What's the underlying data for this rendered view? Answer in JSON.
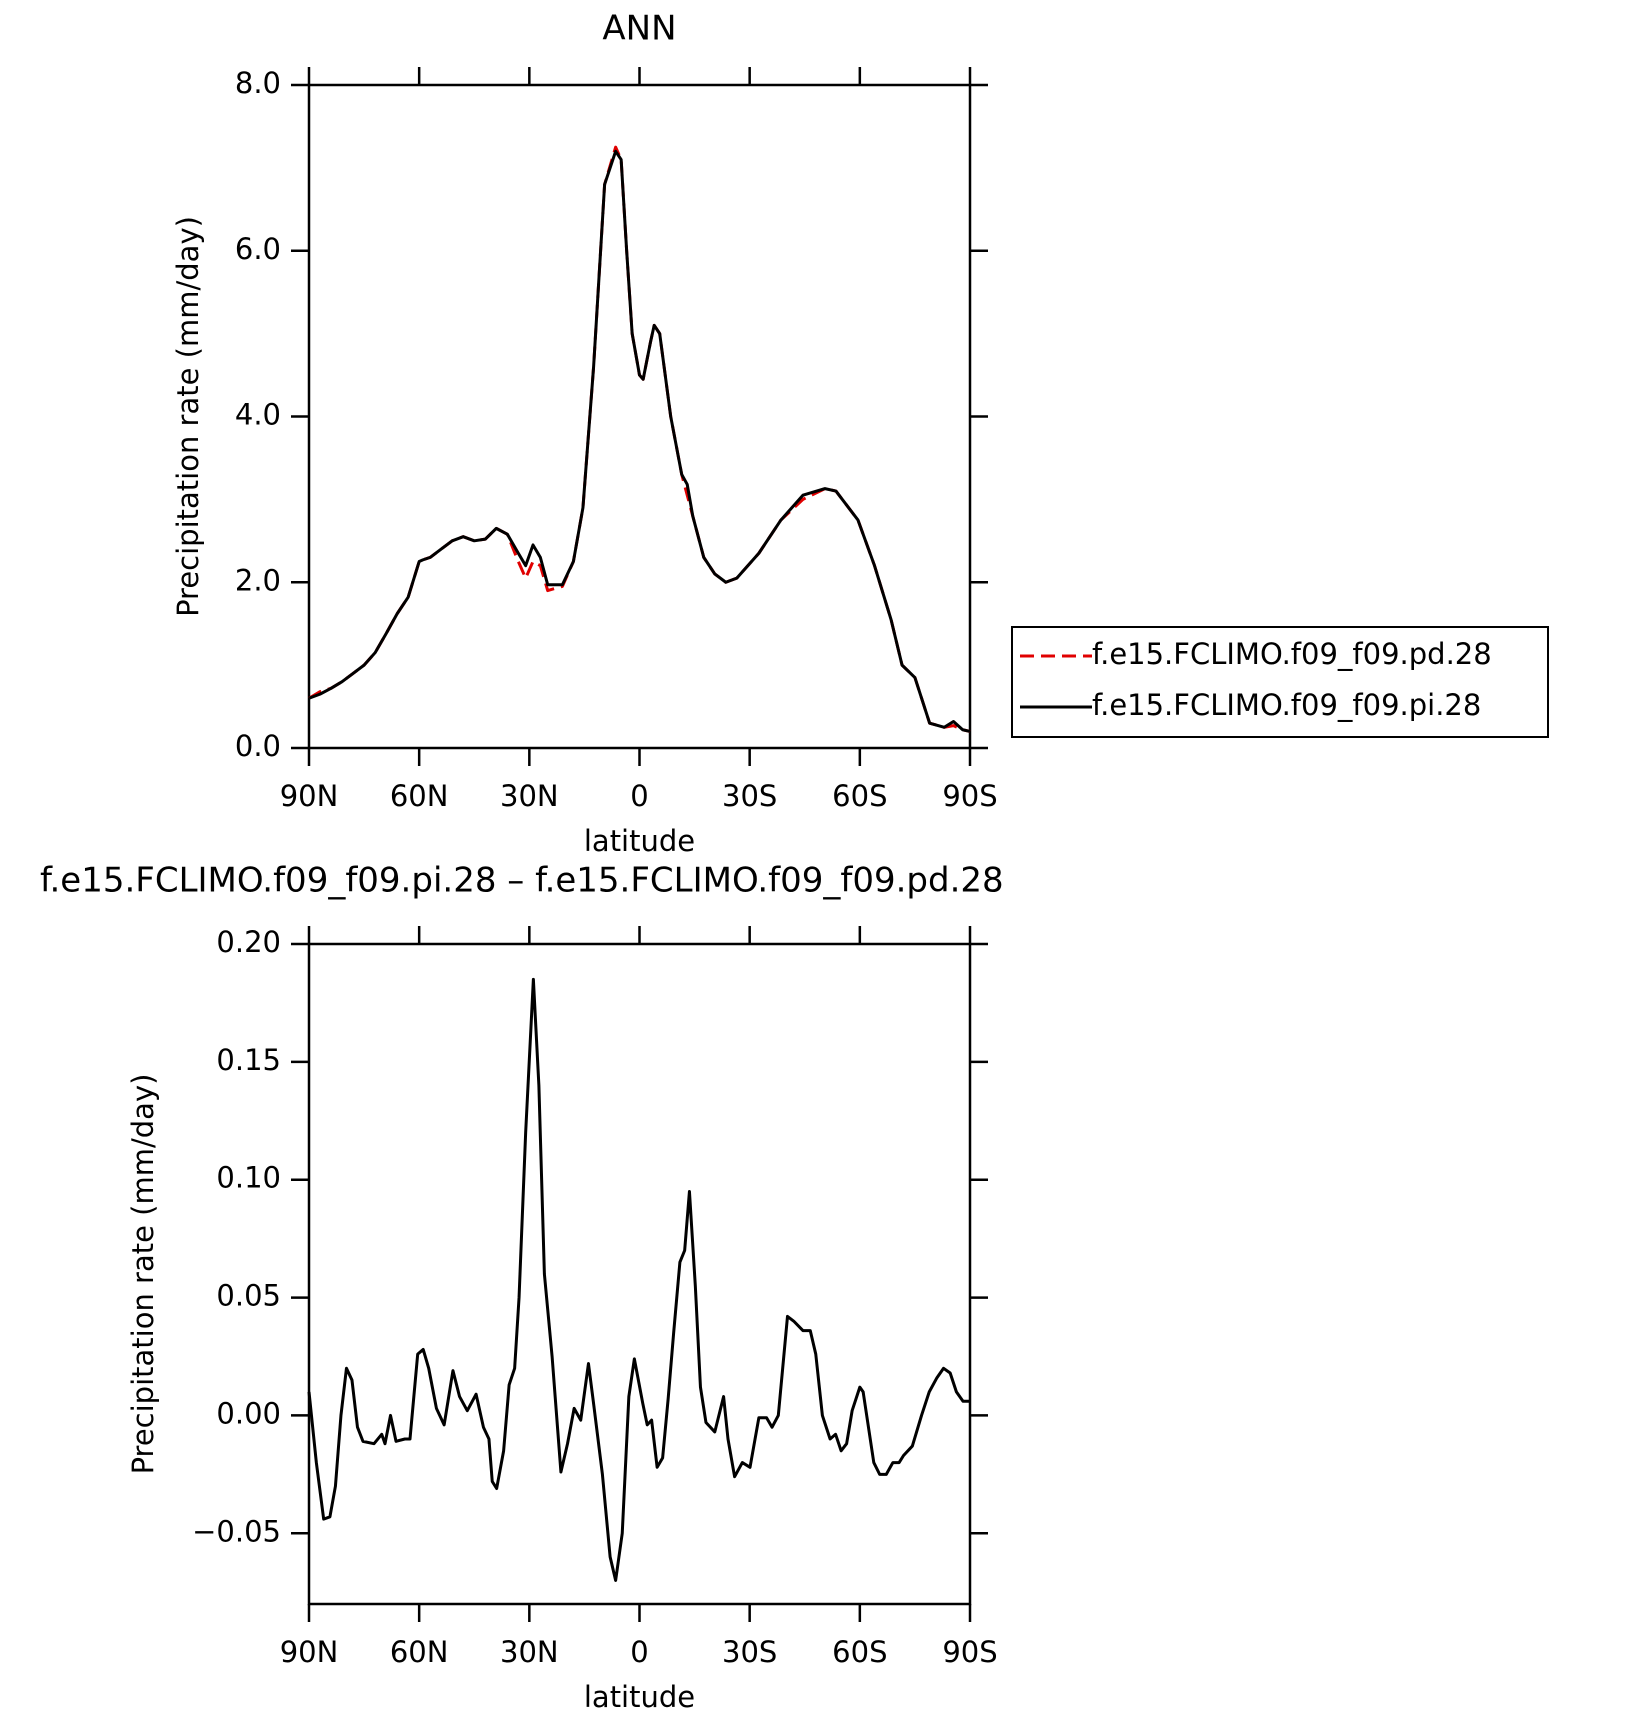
{
  "chart_data": [
    {
      "type": "line",
      "title": "ANN",
      "xlabel": "latitude",
      "ylabel": "Precipitation rate (mm/day)",
      "x": [
        90,
        87,
        84,
        81,
        78,
        75,
        72,
        69,
        66,
        63,
        60,
        59,
        57,
        54,
        51,
        48,
        45,
        42,
        39,
        36,
        33,
        31,
        29,
        27,
        25,
        21,
        18,
        15.4,
        12.5,
        9.5,
        6.5,
        5,
        3.5,
        2,
        0,
        -1,
        -3,
        -4,
        -5.5,
        -8.5,
        -11.5,
        -13,
        -14.5,
        -17.5,
        -20.5,
        -23.5,
        -26.5,
        -32.5,
        -38.5,
        -44.5,
        -50.5,
        -53.5,
        -59.5,
        -64,
        -68.5,
        -71.5,
        -75,
        -79,
        -83,
        -85.5,
        -88,
        -90
      ],
      "series": [
        {
          "name": "f.e15.FCLIMO.f09_f09.pd.28",
          "color": "#e00000",
          "dash": true,
          "values": [
            0.6,
            0.68,
            0.72,
            0.8,
            0.9,
            1.0,
            1.15,
            1.38,
            1.62,
            1.82,
            2.25,
            2.27,
            2.3,
            2.4,
            2.5,
            2.55,
            2.5,
            2.52,
            2.65,
            2.58,
            2.25,
            2.05,
            2.25,
            2.2,
            1.9,
            1.95,
            2.25,
            2.9,
            4.6,
            6.8,
            7.25,
            7.1,
            6.0,
            5.0,
            4.5,
            4.45,
            4.9,
            5.1,
            5.0,
            4.0,
            3.3,
            3.05,
            2.8,
            2.3,
            2.1,
            2.0,
            2.05,
            2.35,
            2.75,
            3.0,
            3.13,
            3.1,
            2.75,
            2.2,
            1.55,
            1.0,
            0.85,
            0.3,
            0.25,
            0.27,
            0.22,
            0.2
          ]
        },
        {
          "name": "f.e15.FCLIMO.f09_f09.pi.28",
          "color": "#000000",
          "dash": false,
          "values": [
            0.6,
            0.65,
            0.72,
            0.8,
            0.9,
            1.0,
            1.15,
            1.38,
            1.62,
            1.82,
            2.25,
            2.27,
            2.3,
            2.4,
            2.5,
            2.55,
            2.5,
            2.52,
            2.65,
            2.58,
            2.35,
            2.2,
            2.45,
            2.3,
            1.97,
            1.97,
            2.25,
            2.9,
            4.6,
            6.8,
            7.2,
            7.1,
            6.0,
            5.0,
            4.5,
            4.45,
            4.9,
            5.1,
            5.0,
            4.0,
            3.3,
            3.18,
            2.8,
            2.3,
            2.1,
            2.0,
            2.05,
            2.35,
            2.75,
            3.05,
            3.13,
            3.1,
            2.75,
            2.2,
            1.55,
            1.0,
            0.85,
            0.3,
            0.25,
            0.32,
            0.22,
            0.2
          ]
        }
      ],
      "xlim": [
        90,
        -90
      ],
      "xticks": [
        {
          "value": 90,
          "label": "90N"
        },
        {
          "value": 60,
          "label": "60N"
        },
        {
          "value": 30,
          "label": "30N"
        },
        0,
        {
          "value": -30,
          "label": "30S"
        },
        {
          "value": -60,
          "label": "60S"
        },
        {
          "value": -90,
          "label": "90S"
        }
      ],
      "ylim": [
        0,
        8
      ],
      "yticks": [
        {
          "value": 0,
          "label": "0.0"
        },
        {
          "value": 2,
          "label": "2.0"
        },
        {
          "value": 4,
          "label": "4.0"
        },
        {
          "value": 6,
          "label": "6.0"
        },
        {
          "value": 8,
          "label": "8.0"
        }
      ],
      "grid": false,
      "legend": "right"
    },
    {
      "type": "line",
      "title": "f.e15.FCLIMO.f09_f09.pi.28 – f.e15.FCLIMO.f09_f09.pd.28",
      "xlabel": "latitude",
      "ylabel": "Precipitation rate (mm/day)",
      "color": "#000000",
      "x": [
        90,
        88,
        86,
        84.3,
        82.8,
        81.3,
        79.8,
        78.3,
        76.8,
        75.3,
        72.3,
        70.2,
        69.3,
        67.8,
        66.3,
        63.9,
        62.5,
        60.4,
        58.9,
        57.4,
        55.3,
        53.2,
        50.8,
        49,
        46.9,
        44.5,
        42.5,
        41,
        40.1,
        38.9,
        37,
        35.5,
        34,
        32.8,
        31,
        28.9,
        27.4,
        25.9,
        23.8,
        21.4,
        19.6,
        17.8,
        16,
        13.9,
        12.5,
        10.1,
        8,
        6.5,
        4.7,
        2.9,
        1.4,
        -0.9,
        -2.1,
        -3.3,
        -4.8,
        -6.3,
        -7.8,
        -9.3,
        -11,
        -12.3,
        -13.6,
        -15.2,
        -16.6,
        -18.1,
        -20.5,
        -22.9,
        -24.1,
        -25.9,
        -28,
        -30.1,
        -32.5,
        -34.6,
        -36.1,
        -37.8,
        -40.3,
        -42,
        -44.5,
        -46.5,
        -48,
        -49.8,
        -51.9,
        -53.4,
        -54.9,
        -56.4,
        -57.9,
        -60,
        -60.9,
        -63.8,
        -65.4,
        -67.2,
        -69,
        -70.7,
        -71.9,
        -74.3,
        -76.8,
        -78.9,
        -81,
        -82.8,
        -84.6,
        -86.3,
        -88.1,
        -90
      ],
      "values": [
        0.01,
        -0.02,
        -0.044,
        -0.043,
        -0.03,
        0.0,
        0.02,
        0.015,
        -0.005,
        -0.011,
        -0.012,
        -0.008,
        -0.012,
        0.0,
        -0.011,
        -0.01,
        -0.01,
        0.026,
        0.028,
        0.02,
        0.003,
        -0.004,
        0.019,
        0.008,
        0.002,
        0.009,
        -0.005,
        -0.01,
        -0.028,
        -0.031,
        -0.015,
        0.013,
        0.02,
        0.05,
        0.12,
        0.185,
        0.14,
        0.06,
        0.025,
        -0.024,
        -0.012,
        0.003,
        -0.002,
        0.022,
        0.005,
        -0.025,
        -0.06,
        -0.07,
        -0.05,
        0.008,
        0.024,
        0.005,
        -0.004,
        -0.002,
        -0.022,
        -0.018,
        0.007,
        0.035,
        0.065,
        0.07,
        0.095,
        0.055,
        0.012,
        -0.003,
        -0.007,
        0.008,
        -0.01,
        -0.026,
        -0.02,
        -0.022,
        -0.001,
        -0.001,
        -0.005,
        0.0,
        0.042,
        0.04,
        0.036,
        0.036,
        0.026,
        0.0,
        -0.01,
        -0.008,
        -0.015,
        -0.012,
        0.002,
        0.012,
        0.01,
        -0.02,
        -0.025,
        -0.025,
        -0.02,
        -0.02,
        -0.017,
        -0.013,
        0.0,
        0.01,
        0.016,
        0.02,
        0.018,
        0.01,
        0.006,
        0.006
      ],
      "xlim": [
        90,
        -90
      ],
      "xticks": [
        {
          "value": 90,
          "label": "90N"
        },
        {
          "value": 60,
          "label": "60N"
        },
        {
          "value": 30,
          "label": "30N"
        },
        0,
        {
          "value": -30,
          "label": "30S"
        },
        {
          "value": -60,
          "label": "60S"
        },
        {
          "value": -90,
          "label": "90S"
        }
      ],
      "ylim": [
        -0.08,
        0.2
      ],
      "yticks": [
        {
          "value": -0.05,
          "label": "−0.05"
        },
        {
          "value": 0,
          "label": "0.00"
        },
        {
          "value": 0.05,
          "label": "0.05"
        },
        {
          "value": 0.1,
          "label": "0.10"
        },
        {
          "value": 0.15,
          "label": "0.15"
        },
        {
          "value": 0.2,
          "label": "0.20"
        }
      ],
      "grid": false
    }
  ]
}
